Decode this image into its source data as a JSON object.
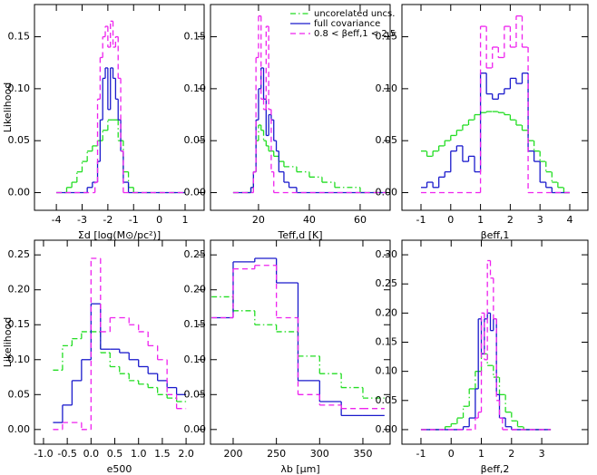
{
  "chart_data": [
    {
      "type": "step",
      "xlabel": "Σd [log(M⊙/pc²)]",
      "ylabel": "Likelihood",
      "xlim": [
        -4.85,
        1.74
      ],
      "ylim": [
        -0.017,
        0.181
      ],
      "xticks": [
        -4,
        -3,
        -2,
        -1,
        0,
        1
      ],
      "yticks": [
        {
          "value": 0,
          "label": "0.00"
        },
        0.05,
        {
          "value": 0.1,
          "label": "0.10"
        },
        0.15
      ],
      "series": [
        {
          "color": "#22dd22",
          "style": "dashdot",
          "bins": [
            -4.0,
            -3.6,
            -3.4,
            -3.2,
            -3.0,
            -2.8,
            -2.6,
            -2.4,
            -2.2,
            -2.0,
            -1.8,
            -1.6,
            -1.4,
            -1.2,
            -1.0,
            1.0
          ],
          "values": [
            0,
            0.005,
            0.01,
            0.02,
            0.03,
            0.04,
            0.045,
            0.05,
            0.06,
            0.07,
            0.07,
            0.05,
            0.02,
            0.005,
            0
          ]
        },
        {
          "color": "#1a1acc",
          "style": "solid",
          "bins": [
            -4.0,
            -2.8,
            -2.6,
            -2.4,
            -2.3,
            -2.2,
            -2.1,
            -2.0,
            -1.9,
            -1.8,
            -1.7,
            -1.6,
            -1.5,
            -1.4,
            -1.2,
            1.0
          ],
          "values": [
            0,
            0.005,
            0.01,
            0.03,
            0.07,
            0.11,
            0.12,
            0.08,
            0.12,
            0.11,
            0.09,
            0.07,
            0.04,
            0.01,
            0
          ]
        },
        {
          "color": "#ee22ee",
          "style": "dashed",
          "bins": [
            -4.0,
            -2.5,
            -2.4,
            -2.3,
            -2.2,
            -2.1,
            -2.0,
            -1.9,
            -1.8,
            -1.7,
            -1.6,
            -1.5,
            -1.4,
            1.0
          ],
          "values": [
            0,
            0.01,
            0.09,
            0.13,
            0.15,
            0.16,
            0.14,
            0.165,
            0.14,
            0.15,
            0.11,
            0.04,
            0
          ]
        }
      ]
    },
    {
      "type": "step",
      "xlabel": "Teff,d [K]",
      "xlim": [
        1.1,
        71.8
      ],
      "ylim": [
        -0.017,
        0.181
      ],
      "xticks": [
        20,
        40,
        60
      ],
      "yticks": [
        {
          "value": 0,
          "label": "0.00"
        },
        0.05,
        {
          "value": 0.1,
          "label": "0.10"
        },
        0.15
      ],
      "legend": "upper right",
      "series": [
        {
          "name": "uncorelated uncs.",
          "color": "#22dd22",
          "style": "dashdot",
          "bins": [
            10,
            17,
            18,
            19,
            20,
            21,
            22,
            23,
            24,
            26,
            28,
            30,
            35,
            40,
            45,
            50,
            60,
            70
          ],
          "values": [
            0,
            0.005,
            0.02,
            0.05,
            0.065,
            0.06,
            0.05,
            0.045,
            0.04,
            0.035,
            0.03,
            0.025,
            0.02,
            0.015,
            0.01,
            0.005,
            0
          ]
        },
        {
          "name": "full covariance",
          "color": "#1a1acc",
          "style": "solid",
          "bins": [
            10,
            17,
            18,
            19,
            20,
            21,
            22,
            23,
            24,
            25,
            26,
            27,
            28,
            30,
            32,
            35,
            70
          ],
          "values": [
            0,
            0.005,
            0.02,
            0.07,
            0.1,
            0.12,
            0.09,
            0.055,
            0.075,
            0.07,
            0.05,
            0.04,
            0.02,
            0.01,
            0.005,
            0
          ]
        },
        {
          "name": "0.8 < βeff,1 < 2.5",
          "color": "#ee22ee",
          "style": "dashed",
          "bins": [
            10,
            18,
            19,
            20,
            21,
            22,
            23,
            24,
            25,
            26,
            70
          ],
          "values": [
            0,
            0.02,
            0.13,
            0.17,
            0.09,
            0.08,
            0.16,
            0.08,
            0.02,
            0
          ]
        }
      ]
    },
    {
      "type": "step",
      "xlabel": "βeff,1",
      "xlim": [
        -1.64,
        4.61
      ],
      "ylim": [
        -0.017,
        0.181
      ],
      "xticks": [
        -1,
        0,
        1,
        2,
        3,
        4
      ],
      "yticks": [
        {
          "value": 0,
          "label": "0.00"
        },
        0.05,
        {
          "value": 0.1,
          "label": "0.10"
        },
        0.15
      ],
      "series": [
        {
          "color": "#22dd22",
          "style": "dashdot",
          "bins": [
            -1.0,
            -0.8,
            -0.6,
            -0.4,
            -0.2,
            0.0,
            0.2,
            0.4,
            0.6,
            0.8,
            1.0,
            1.2,
            1.4,
            1.6,
            1.8,
            2.0,
            2.2,
            2.4,
            2.6,
            2.8,
            3.0,
            3.2,
            3.4,
            3.6,
            3.8,
            4.0
          ],
          "values": [
            0.04,
            0.035,
            0.04,
            0.045,
            0.05,
            0.055,
            0.06,
            0.065,
            0.07,
            0.075,
            0.077,
            0.078,
            0.078,
            0.077,
            0.075,
            0.07,
            0.065,
            0.06,
            0.05,
            0.04,
            0.03,
            0.02,
            0.01,
            0.005,
            0
          ]
        },
        {
          "color": "#1a1acc",
          "style": "solid",
          "bins": [
            -1.0,
            -0.8,
            -0.6,
            -0.4,
            -0.2,
            0.0,
            0.2,
            0.4,
            0.6,
            0.8,
            1.0,
            1.2,
            1.4,
            1.6,
            1.8,
            2.0,
            2.2,
            2.4,
            2.6,
            2.8,
            3.0,
            3.2,
            3.4,
            3.6,
            3.8,
            4.0
          ],
          "values": [
            0.005,
            0.01,
            0.005,
            0.015,
            0.02,
            0.04,
            0.045,
            0.03,
            0.035,
            0.02,
            0.115,
            0.095,
            0.09,
            0.095,
            0.1,
            0.11,
            0.105,
            0.115,
            0.04,
            0.03,
            0.01,
            0.005,
            0,
            0,
            0
          ]
        },
        {
          "color": "#ee22ee",
          "style": "dashed",
          "bins": [
            -1.0,
            1.0,
            1.2,
            1.4,
            1.6,
            1.8,
            2.0,
            2.2,
            2.4,
            2.6,
            4.0
          ],
          "values": [
            0,
            0.16,
            0.12,
            0.14,
            0.13,
            0.16,
            0.14,
            0.17,
            0.14,
            0
          ]
        }
      ]
    },
    {
      "type": "step",
      "xlabel": "e500",
      "ylabel": "Likelihood",
      "xlim": [
        -1.19,
        2.38
      ],
      "ylim": [
        -0.021,
        0.271
      ],
      "xticks": [
        {
          "value": -1,
          "label": "-1.0"
        },
        -0.5,
        {
          "value": 0,
          "label": "0.0"
        },
        0.5,
        {
          "value": 1,
          "label": "1.0"
        },
        1.5,
        {
          "value": 2,
          "label": "2.0"
        }
      ],
      "yticks": [
        {
          "value": 0,
          "label": "0.00"
        },
        0.05,
        {
          "value": 0.1,
          "label": "0.10"
        },
        0.15,
        {
          "value": 0.2,
          "label": "0.20"
        },
        0.25
      ],
      "series": [
        {
          "color": "#22dd22",
          "style": "dashdot",
          "bins": [
            -0.8,
            -0.6,
            -0.4,
            -0.2,
            0.0,
            0.2,
            0.4,
            0.6,
            0.8,
            1.0,
            1.2,
            1.4,
            1.6,
            1.8,
            2.0
          ],
          "values": [
            0.085,
            0.12,
            0.13,
            0.14,
            0.14,
            0.11,
            0.09,
            0.08,
            0.07,
            0.065,
            0.06,
            0.05,
            0.045,
            0.04
          ]
        },
        {
          "color": "#1a1acc",
          "style": "solid",
          "bins": [
            -0.8,
            -0.6,
            -0.4,
            -0.2,
            0.0,
            0.2,
            0.4,
            0.6,
            0.8,
            1.0,
            1.2,
            1.4,
            1.6,
            1.8,
            2.0
          ],
          "values": [
            0.01,
            0.035,
            0.07,
            0.1,
            0.18,
            0.115,
            0.115,
            0.11,
            0.1,
            0.09,
            0.08,
            0.07,
            0.06,
            0.05
          ]
        },
        {
          "color": "#ee22ee",
          "style": "dashed",
          "bins": [
            -0.8,
            -0.6,
            -0.4,
            -0.2,
            0.0,
            0.2,
            0.4,
            0.6,
            0.8,
            1.0,
            1.2,
            1.4,
            1.6,
            1.8,
            2.0
          ],
          "values": [
            0,
            0.01,
            0.01,
            0,
            0.245,
            0.14,
            0.16,
            0.16,
            0.15,
            0.14,
            0.12,
            0.1,
            0.05,
            0.03
          ]
        }
      ]
    },
    {
      "type": "step",
      "xlabel": "λb [μm]",
      "xlim": [
        173.8,
        381.5
      ],
      "ylim": [
        -0.021,
        0.271
      ],
      "xticks": [
        200,
        250,
        300,
        350
      ],
      "yticks": [
        {
          "value": 0,
          "label": "0.00"
        },
        0.05,
        {
          "value": 0.1,
          "label": "0.10"
        },
        0.15,
        {
          "value": 0.2,
          "label": "0.20"
        },
        0.25
      ],
      "series": [
        {
          "color": "#22dd22",
          "style": "dashdot",
          "bins": [
            175,
            200,
            225,
            250,
            275,
            300,
            325,
            350,
            375
          ],
          "values": [
            0.19,
            0.17,
            0.15,
            0.14,
            0.105,
            0.08,
            0.06,
            0.045
          ]
        },
        {
          "color": "#1a1acc",
          "style": "solid",
          "bins": [
            175,
            200,
            225,
            250,
            275,
            300,
            325,
            350,
            375
          ],
          "values": [
            0.16,
            0.24,
            0.245,
            0.21,
            0.07,
            0.04,
            0.02,
            0.02
          ]
        },
        {
          "color": "#ee22ee",
          "style": "dashed",
          "bins": [
            175,
            200,
            225,
            250,
            275,
            300,
            325,
            350,
            375
          ],
          "values": [
            0.16,
            0.23,
            0.235,
            0.16,
            0.05,
            0.035,
            0.03,
            0.03
          ]
        }
      ]
    },
    {
      "type": "step",
      "xlabel": "βeff,2",
      "xlim": [
        -1.63,
        4.53
      ],
      "ylim": [
        -0.025,
        0.325
      ],
      "xticks": [
        -1,
        0,
        1,
        2,
        3
      ],
      "yticks": [
        {
          "value": 0,
          "label": "0.00"
        },
        0.05,
        {
          "value": 0.1,
          "label": "0.10"
        },
        0.15,
        {
          "value": 0.2,
          "label": "0.20"
        },
        0.25,
        {
          "value": 0.3,
          "label": "0.30"
        }
      ],
      "series": [
        {
          "color": "#22dd22",
          "style": "dashdot",
          "bins": [
            -1.0,
            -0.2,
            0.0,
            0.2,
            0.4,
            0.6,
            0.8,
            1.0,
            1.2,
            1.4,
            1.6,
            1.8,
            2.0,
            2.2,
            2.4,
            3.3
          ],
          "values": [
            0,
            0.005,
            0.01,
            0.02,
            0.04,
            0.07,
            0.1,
            0.13,
            0.11,
            0.09,
            0.06,
            0.03,
            0.015,
            0.005,
            0
          ]
        },
        {
          "color": "#1a1acc",
          "style": "solid",
          "bins": [
            -1.0,
            0.4,
            0.6,
            0.8,
            0.9,
            1.0,
            1.1,
            1.2,
            1.3,
            1.4,
            1.5,
            1.6,
            1.8,
            2.0,
            3.3
          ],
          "values": [
            0,
            0.005,
            0.02,
            0.07,
            0.19,
            0.13,
            0.19,
            0.2,
            0.17,
            0.19,
            0.06,
            0.02,
            0.005,
            0
          ]
        },
        {
          "color": "#ee22ee",
          "style": "dashed",
          "bins": [
            -1.0,
            0.8,
            0.9,
            1.0,
            1.1,
            1.2,
            1.3,
            1.4,
            1.5,
            1.6,
            1.7,
            3.3
          ],
          "values": [
            0,
            0.02,
            0.03,
            0.2,
            0.12,
            0.29,
            0.26,
            0.19,
            0.05,
            0.02,
            0
          ]
        }
      ]
    }
  ]
}
